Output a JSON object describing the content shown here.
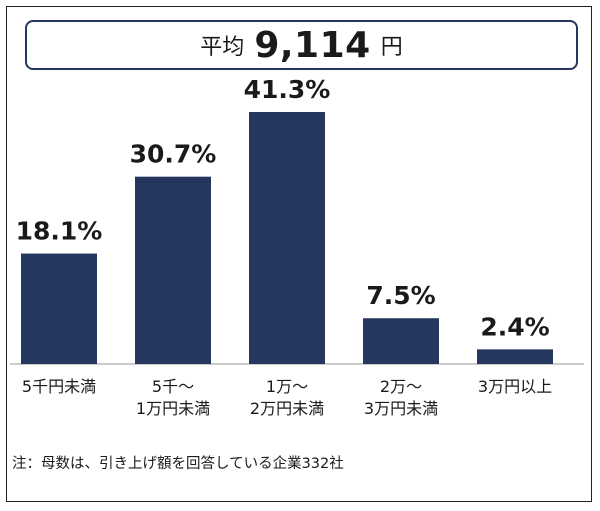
{
  "average": {
    "label": "平均",
    "value": "9,114",
    "unit": "円"
  },
  "chart_data": {
    "type": "bar",
    "categories": [
      [
        "5千円未満"
      ],
      [
        "5千～",
        "1万円未満"
      ],
      [
        "1万～",
        "2万円未満"
      ],
      [
        "2万～",
        "3万円未満"
      ],
      [
        "3万円以上"
      ]
    ],
    "values": [
      18.1,
      30.7,
      41.3,
      7.5,
      2.4
    ],
    "value_labels": [
      "18.1%",
      "30.7%",
      "41.3%",
      "7.5%",
      "2.4%"
    ],
    "unit": "%",
    "ylim": [
      0,
      50
    ],
    "grid": false,
    "bar_color": "#25365f"
  },
  "note": "注：母数は、引き上げ額を回答している企業332社"
}
